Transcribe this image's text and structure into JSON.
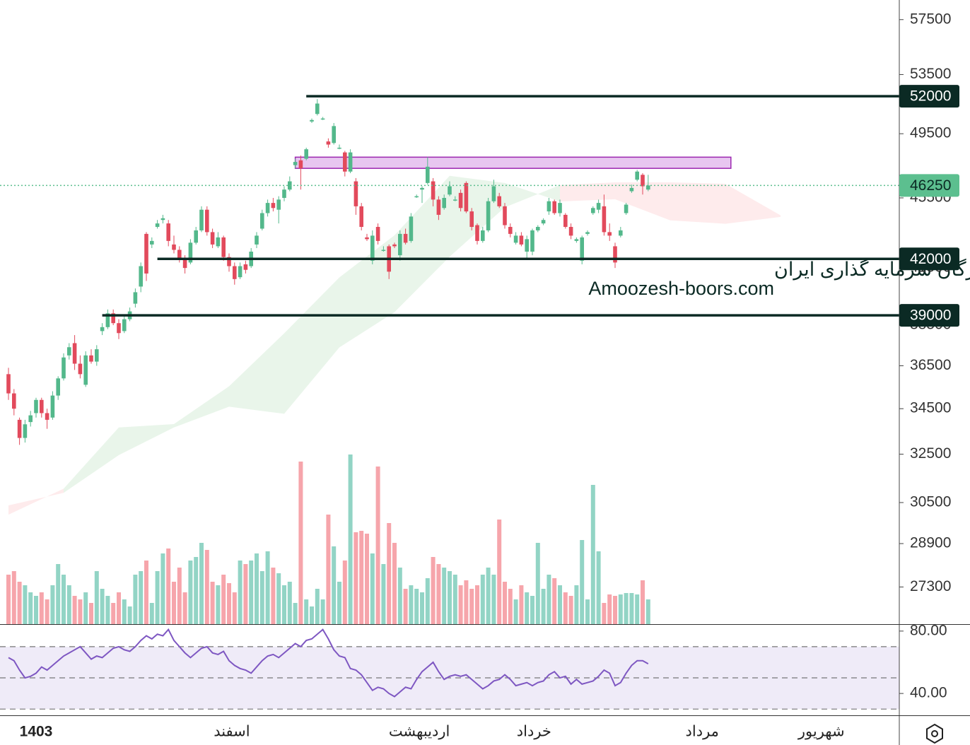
{
  "chart_data": {
    "type": "candlestick",
    "log_scale": true,
    "ylim": [
      26000,
      59000
    ],
    "yticks": [
      57500,
      53500,
      49500,
      45500,
      41500,
      38500,
      36500,
      34500,
      32500,
      30500,
      28900,
      27300
    ],
    "up_color": "#53b88b",
    "down_color": "#e24a5c",
    "open": [
      36100,
      35200,
      34000,
      33200,
      33900,
      34300,
      34900,
      34300,
      34100,
      35100,
      35900,
      37000,
      37600,
      36600,
      35600,
      37000,
      36700,
      38200,
      38400,
      39100,
      38600,
      38200,
      38800,
      39600,
      40500,
      43400,
      42800,
      43800,
      44200,
      44000,
      42800,
      42500,
      42000,
      41800,
      42900,
      43600,
      44800,
      43500,
      42700,
      43200,
      42100,
      41600,
      41000,
      41700,
      41600,
      42800,
      43700,
      44600,
      45200,
      44800,
      45500,
      46000,
      47500,
      47800,
      47900,
      50300,
      50800,
      50500,
      49000,
      48900,
      48600,
      48300,
      47100,
      46500,
      45000,
      43200,
      41900,
      43800,
      42500,
      42700,
      42800,
      42200,
      43400,
      43000,
      45600,
      46000,
      46400,
      46500,
      45400,
      44900,
      45700,
      45400,
      45800,
      46400,
      44700,
      43900,
      43000,
      43600,
      45300,
      45600,
      45000,
      43800,
      42900,
      43300,
      42400,
      42400,
      43600,
      44000,
      44700,
      45300,
      44600,
      44500,
      43800,
      43000,
      41900,
      43400,
      44600,
      44800,
      45000,
      43500,
      42700,
      43300,
      44600,
      45900,
      46600,
      46900,
      46000
    ],
    "high": [
      36400,
      35400,
      34100,
      34000,
      34400,
      35000,
      35000,
      34500,
      35300,
      36000,
      37100,
      37600,
      38000,
      37000,
      37200,
      37300,
      37500,
      38600,
      39300,
      39300,
      38800,
      39000,
      39400,
      40400,
      41800,
      43500,
      43200,
      44200,
      44500,
      44200,
      43300,
      42700,
      42200,
      43100,
      43800,
      45000,
      45000,
      43700,
      43500,
      43300,
      42300,
      41800,
      41800,
      41900,
      42600,
      43500,
      44800,
      45400,
      45500,
      45600,
      46200,
      46800,
      47900,
      48100,
      48600,
      50500,
      51800,
      50600,
      49200,
      50200,
      48800,
      48400,
      48500,
      46700,
      45200,
      43400,
      43600,
      44000,
      42700,
      42800,
      42900,
      43600,
      43700,
      44600,
      45700,
      46200,
      48000,
      46700,
      45600,
      45700,
      46500,
      45600,
      46000,
      46500,
      44900,
      44000,
      43800,
      45500,
      46600,
      45800,
      45200,
      44000,
      43500,
      43500,
      43300,
      43700,
      43900,
      44300,
      45500,
      45400,
      45400,
      44600,
      44000,
      43200,
      43300,
      43600,
      45000,
      45400,
      45700,
      44000,
      42900,
      43800,
      45200,
      46300,
      47200,
      47000,
      46900
    ],
    "low": [
      34900,
      34200,
      32900,
      33000,
      33700,
      34100,
      34100,
      33600,
      34000,
      34900,
      35800,
      36800,
      36300,
      35900,
      35500,
      36600,
      36500,
      38000,
      38300,
      38500,
      37800,
      38100,
      38700,
      39400,
      40200,
      40800,
      42600,
      43700,
      44000,
      42700,
      42300,
      41800,
      41200,
      41700,
      42800,
      43500,
      43300,
      42600,
      42600,
      41900,
      41300,
      40600,
      40900,
      41200,
      41500,
      42600,
      43600,
      44400,
      44700,
      44000,
      45300,
      45900,
      47300,
      46000,
      47800,
      50200,
      50700,
      50400,
      48600,
      48800,
      48500,
      46800,
      47000,
      44500,
      43600,
      43000,
      41700,
      42800,
      42400,
      40900,
      42600,
      41900,
      42800,
      42900,
      45500,
      45200,
      46300,
      45000,
      44200,
      44800,
      45600,
      45300,
      44700,
      44600,
      43600,
      42800,
      42900,
      43500,
      45200,
      44900,
      43700,
      43200,
      42800,
      42700,
      42000,
      42200,
      43500,
      43900,
      44500,
      44500,
      44400,
      43700,
      43100,
      42900,
      41700,
      43300,
      44500,
      44600,
      43300,
      43000,
      41500,
      43200,
      44500,
      45800,
      46500,
      45700,
      45900
    ],
    "close": [
      35200,
      34500,
      33200,
      33800,
      34200,
      34900,
      34300,
      34000,
      35100,
      35900,
      36900,
      37400,
      36600,
      36100,
      37000,
      36700,
      37300,
      38400,
      39100,
      38600,
      38100,
      38800,
      39200,
      40200,
      41600,
      41200,
      43000,
      44000,
      44300,
      43000,
      42500,
      42000,
      41500,
      42900,
      43600,
      44800,
      43500,
      42800,
      43200,
      42100,
      41600,
      40900,
      41600,
      41400,
      42400,
      43300,
      44600,
      45200,
      44900,
      45400,
      46000,
      46500,
      47700,
      47300,
      48500,
      50400,
      51500,
      50500,
      48800,
      50000,
      48600,
      47100,
      48300,
      45000,
      43800,
      43100,
      43300,
      43000,
      42500,
      41300,
      42700,
      43400,
      42900,
      44400,
      45600,
      46100,
      47400,
      45400,
      44500,
      45500,
      46200,
      45400,
      44900,
      44700,
      43800,
      43000,
      43600,
      45300,
      46200,
      45000,
      43900,
      43400,
      43300,
      42800,
      43100,
      43600,
      43800,
      44200,
      45300,
      44600,
      45200,
      43800,
      43300,
      43100,
      43200,
      43500,
      44900,
      45200,
      43500,
      43300,
      41800,
      43600,
      45100,
      46100,
      47100,
      46200,
      46250
    ],
    "volume": [
      70,
      75,
      60,
      55,
      45,
      40,
      45,
      35,
      55,
      85,
      70,
      55,
      40,
      35,
      45,
      30,
      75,
      50,
      40,
      30,
      45,
      35,
      25,
      70,
      75,
      90,
      30,
      75,
      100,
      107,
      60,
      80,
      45,
      90,
      95,
      115,
      105,
      60,
      55,
      70,
      58,
      45,
      90,
      85,
      90,
      100,
      75,
      103,
      80,
      72,
      55,
      60,
      30,
      230,
      35,
      25,
      50,
      35,
      155,
      110,
      60,
      90,
      240,
      130,
      132,
      128,
      100,
      223,
      85,
      143,
      115,
      80,
      50,
      55,
      50,
      45,
      65,
      95,
      85,
      80,
      75,
      70,
      55,
      62,
      50,
      55,
      70,
      80,
      70,
      148,
      60,
      50,
      35,
      55,
      45,
      40,
      115,
      50,
      70,
      65,
      55,
      45,
      40,
      55,
      119,
      35,
      197,
      103,
      30,
      42,
      40,
      42,
      44,
      44,
      42,
      62,
      35
    ],
    "volume_up_color": "#92d4c5",
    "volume_down_color": "#f6a5ab",
    "cloud": {
      "index": [
        0,
        10,
        20,
        30,
        40,
        50,
        60,
        70,
        80,
        90,
        100,
        110,
        120,
        130,
        140
      ],
      "span_a": [
        30020,
        31060,
        33660,
        33810,
        35530,
        38090,
        40990,
        43320,
        46840,
        46400,
        45290,
        45420,
        44180,
        43980,
        44380
      ],
      "span_b": [
        30385,
        30890,
        32460,
        33660,
        34590,
        34270,
        37390,
        39160,
        42120,
        44940,
        46270,
        46440,
        46440,
        46350,
        44470
      ],
      "up_color": "rgba(76,175,80,0.12)",
      "down_color": "rgba(242,54,69,0.10)"
    },
    "zone": {
      "from_index": 52,
      "to_index": 131,
      "low": 47300,
      "high": 48000,
      "color": "#e8c6f0",
      "border": "#9c27b0"
    },
    "levels": [
      {
        "value": 52000,
        "from_index": 54
      },
      {
        "value": 42000,
        "from_index": 27
      },
      {
        "value": 39000,
        "from_index": 17
      }
    ],
    "level_color": "#0b2a24",
    "current_price": 46250,
    "current_color": "#5cbf8f",
    "watermark": [
      "انجمن خبرگان سرمایه گذاری ایران",
      "Amoozesh-boors.com"
    ],
    "time_labels": [
      {
        "index": 5,
        "label": "1403"
      },
      {
        "index": 40.5,
        "label": "اسفند"
      },
      {
        "index": 74.5,
        "label": "اردیبهشت"
      },
      {
        "index": 95.3,
        "label": "خرداد"
      },
      {
        "index": 125.8,
        "label": "مرداد"
      },
      {
        "index": 147.4,
        "label": "شهریور"
      }
    ],
    "rsi": {
      "values": [
        63,
        61,
        55,
        50,
        51,
        53,
        57,
        55,
        58,
        61,
        64,
        66,
        68,
        70,
        66,
        62,
        64,
        63,
        66,
        69,
        70,
        68,
        67,
        70,
        74,
        77,
        75,
        78,
        77,
        81,
        74,
        70,
        66,
        63,
        66,
        69,
        70,
        66,
        65,
        67,
        61,
        58,
        56,
        55,
        53,
        57,
        61,
        64,
        65,
        63,
        66,
        69,
        72,
        70,
        74,
        75,
        78,
        81,
        75,
        68,
        64,
        63,
        56,
        55,
        52,
        47,
        42,
        44,
        43,
        40,
        38,
        41,
        44,
        43,
        49,
        54,
        57,
        60,
        54,
        49,
        51,
        52,
        51,
        52,
        49,
        46,
        43,
        45,
        48,
        49,
        52,
        49,
        45,
        46,
        47,
        45,
        47,
        48,
        52,
        54,
        50,
        51,
        46,
        49,
        46,
        47,
        48,
        51,
        55,
        53,
        45,
        47,
        53,
        58,
        61,
        61,
        59
      ],
      "ylim": [
        26,
        84
      ],
      "yticks": [
        {
          "value": 80,
          "label": "80.00"
        },
        {
          "value": 40,
          "label": "40.00"
        }
      ],
      "bands": [
        70,
        50,
        30
      ],
      "color": "#7e57c2",
      "band_color": "rgba(126,87,194,0.12)"
    }
  }
}
